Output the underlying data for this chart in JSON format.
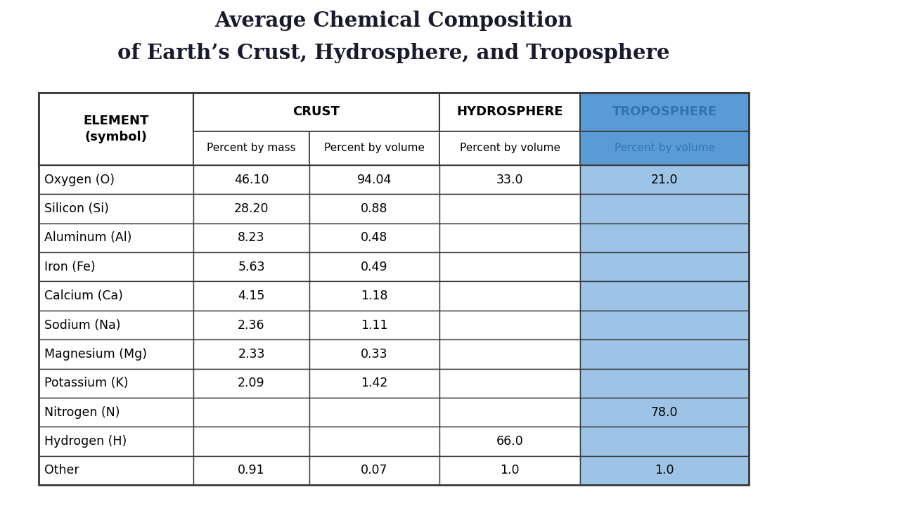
{
  "title_line1": "Average Chemical Composition",
  "title_line2": "of Earth’s Crust, Hydrosphere, and Troposphere",
  "rows": [
    [
      "Oxygen (O)",
      "46.10",
      "94.04",
      "33.0",
      "21.0"
    ],
    [
      "Silicon (Si)",
      "28.20",
      "0.88",
      "",
      ""
    ],
    [
      "Aluminum (Al)",
      "8.23",
      "0.48",
      "",
      ""
    ],
    [
      "Iron (Fe)",
      "5.63",
      "0.49",
      "",
      ""
    ],
    [
      "Calcium (Ca)",
      "4.15",
      "1.18",
      "",
      ""
    ],
    [
      "Sodium (Na)",
      "2.36",
      "1.11",
      "",
      ""
    ],
    [
      "Magnesium (Mg)",
      "2.33",
      "0.33",
      "",
      ""
    ],
    [
      "Potassium (K)",
      "2.09",
      "1.42",
      "",
      ""
    ],
    [
      "Nitrogen (N)",
      "",
      "",
      "",
      "78.0"
    ],
    [
      "Hydrogen (H)",
      "",
      "",
      "66.0",
      ""
    ],
    [
      "Other",
      "0.91",
      "0.07",
      "1.0",
      "1.0"
    ]
  ],
  "troposphere_header_color": "#5b9bd5",
  "troposphere_cell_color": "#9dc3e6",
  "troposphere_text_color": "#2e74b5",
  "white": "#ffffff",
  "border_color": "#3a3a3a",
  "title_color": "#1a1a2e",
  "black": "#000000"
}
